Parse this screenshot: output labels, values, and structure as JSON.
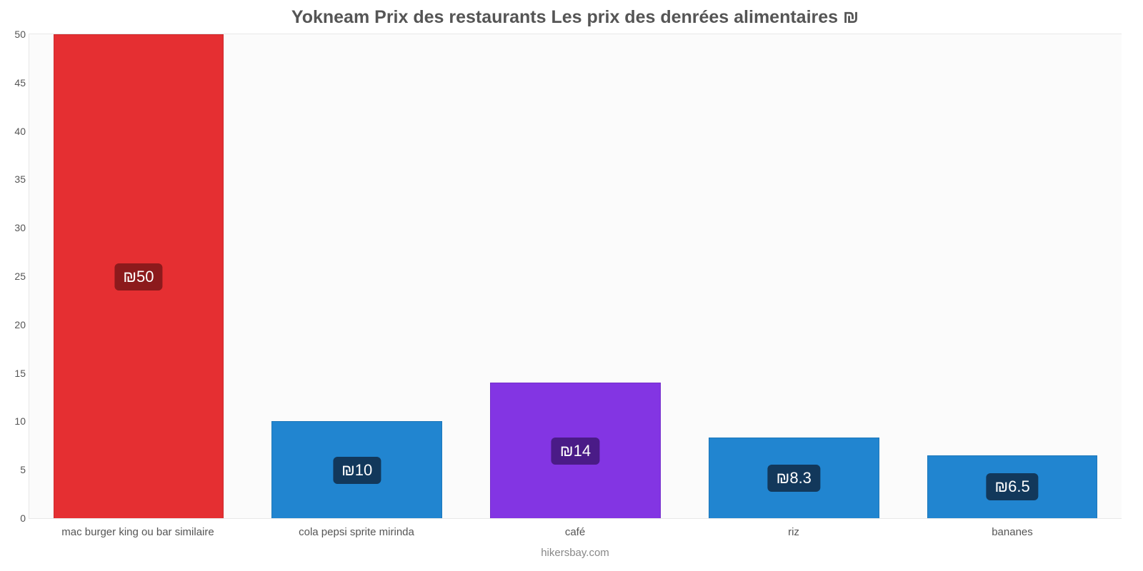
{
  "chart": {
    "type": "bar",
    "title": "Yokneam Prix des restaurants Les prix des denrées alimentaires ₪",
    "title_fontsize": 25,
    "title_color": "#555555",
    "background_color": "#ffffff",
    "plot_background": "#fbfbfb",
    "plot_border_color": "#e8e8e8",
    "ylim": [
      0,
      50
    ],
    "ytick_step": 5,
    "yticks": [
      0,
      5,
      10,
      15,
      20,
      25,
      30,
      35,
      40,
      45,
      50
    ],
    "axis_label_color": "#555555",
    "axis_label_fontsize": 14,
    "bar_width_ratio": 0.78,
    "categories": [
      "mac burger king ou bar similaire",
      "cola pepsi sprite mirinda",
      "café",
      "riz",
      "bananes"
    ],
    "values": [
      50,
      10,
      14,
      8.3,
      6.5
    ],
    "value_labels": [
      "₪50",
      "₪10",
      "₪14",
      "₪8.3",
      "₪6.5"
    ],
    "bar_colors": [
      "#e52f32",
      "#2185d0",
      "#8335e3",
      "#2185d0",
      "#2185d0"
    ],
    "badge_colors": [
      "#8c1a1c",
      "#12385b",
      "#4a1b87",
      "#12385b",
      "#12385b"
    ],
    "badge_text_color": "#ffffff",
    "badge_fontsize": 22,
    "x_label_fontsize": 15,
    "source": "hikersbay.com",
    "source_color": "#888888",
    "source_fontsize": 15
  }
}
